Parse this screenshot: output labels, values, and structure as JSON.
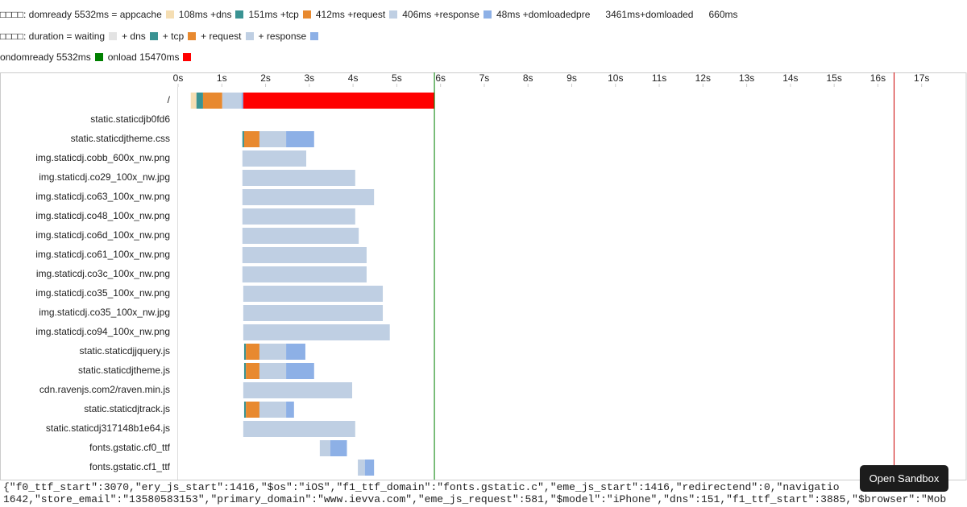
{
  "legend_lines": [
    [
      {
        "text": "□□□□: domready 5532ms = appcache",
        "color": "#f5deb3"
      },
      {
        "text": "108ms +dns",
        "color": "#3a9393"
      },
      {
        "text": "151ms +tcp",
        "color": "#e8892f"
      },
      {
        "text": "412ms +request",
        "color": "#bfcfe3"
      },
      {
        "text": "406ms +response",
        "color": "#8db0e6"
      },
      {
        "text": "48ms +domloadedpre"
      },
      {
        "text": "3461ms+domloaded"
      },
      {
        "text": "660ms"
      }
    ],
    [
      {
        "text": "□□□□: duration = waiting",
        "color": "#e3e3e3"
      },
      {
        "text": "+ dns",
        "color": "#3a9393"
      },
      {
        "text": "+ tcp",
        "color": "#e8892f"
      },
      {
        "text": "+ request",
        "color": "#bfcfe3"
      },
      {
        "text": "+ response",
        "color": "#8db0e6"
      }
    ],
    [
      {
        "text": "ondomready 5532ms",
        "color": "#008000"
      },
      {
        "text": "onload 15470ms",
        "color": "#ff0000"
      }
    ]
  ],
  "chart_data": {
    "type": "gantt",
    "xlim": [
      0,
      18
    ],
    "xticks": [
      {
        "value": 0,
        "label": "0s"
      },
      {
        "value": 1,
        "label": "1s"
      },
      {
        "value": 2,
        "label": "2s"
      },
      {
        "value": 3,
        "label": "3s"
      },
      {
        "value": 4,
        "label": "4s"
      },
      {
        "value": 5,
        "label": "5s"
      },
      {
        "value": 6,
        "label": "6s"
      },
      {
        "value": 7,
        "label": "7s"
      },
      {
        "value": 8,
        "label": "8s"
      },
      {
        "value": 9,
        "label": "9s"
      },
      {
        "value": 10,
        "label": "10s"
      },
      {
        "value": 11,
        "label": "11s"
      },
      {
        "value": 12,
        "label": "12s"
      },
      {
        "value": 13,
        "label": "13s"
      },
      {
        "value": 14,
        "label": "14s"
      },
      {
        "value": 15,
        "label": "15s"
      },
      {
        "value": 16,
        "label": "16s"
      },
      {
        "value": 17,
        "label": "17s"
      }
    ],
    "markers": [
      {
        "value": 5.86,
        "color": "#008000"
      },
      {
        "value": 16.37,
        "color": "#cc0000"
      }
    ],
    "rows": [
      {
        "name": "/",
        "segments": [
          {
            "start": 0.29,
            "end": 0.42,
            "color": "#f5deb3"
          },
          {
            "start": 0.42,
            "end": 0.57,
            "color": "#3a9393"
          },
          {
            "start": 0.57,
            "end": 1.01,
            "color": "#e8892f"
          },
          {
            "start": 1.01,
            "end": 1.45,
            "color": "#bfcfe3"
          },
          {
            "start": 1.45,
            "end": 1.49,
            "color": "#8db0e6"
          },
          {
            "start": 1.49,
            "end": 5.86,
            "color": "#ff0000"
          }
        ]
      },
      {
        "name": "static.staticdjb0fd6",
        "segments": []
      },
      {
        "name": "static.staticdjtheme.css",
        "segments": [
          {
            "start": 1.47,
            "end": 1.51,
            "color": "#3a9393"
          },
          {
            "start": 1.51,
            "end": 1.86,
            "color": "#e8892f"
          },
          {
            "start": 1.86,
            "end": 2.47,
            "color": "#bfcfe3"
          },
          {
            "start": 2.47,
            "end": 3.11,
            "color": "#8db0e6"
          }
        ]
      },
      {
        "name": "img.staticdj.cobb_600x_nw.png",
        "segments": [
          {
            "start": 1.47,
            "end": 2.93,
            "color": "#bfcfe3"
          }
        ]
      },
      {
        "name": "img.staticdj.co29_100x_nw.jpg",
        "segments": [
          {
            "start": 1.47,
            "end": 4.05,
            "color": "#bfcfe3"
          }
        ]
      },
      {
        "name": "img.staticdj.co63_100x_nw.png",
        "segments": [
          {
            "start": 1.47,
            "end": 4.48,
            "color": "#bfcfe3"
          }
        ]
      },
      {
        "name": "img.staticdj.co48_100x_nw.png",
        "segments": [
          {
            "start": 1.47,
            "end": 4.05,
            "color": "#bfcfe3"
          }
        ]
      },
      {
        "name": "img.staticdj.co6d_100x_nw.png",
        "segments": [
          {
            "start": 1.47,
            "end": 4.13,
            "color": "#bfcfe3"
          }
        ]
      },
      {
        "name": "img.staticdj.co61_100x_nw.png",
        "segments": [
          {
            "start": 1.47,
            "end": 4.31,
            "color": "#bfcfe3"
          }
        ]
      },
      {
        "name": "img.staticdj.co3c_100x_nw.png",
        "segments": [
          {
            "start": 1.47,
            "end": 4.31,
            "color": "#bfcfe3"
          }
        ]
      },
      {
        "name": "img.staticdj.co35_100x_nw.png",
        "segments": [
          {
            "start": 1.49,
            "end": 4.68,
            "color": "#bfcfe3"
          }
        ]
      },
      {
        "name": "img.staticdj.co35_100x_nw.jpg",
        "segments": [
          {
            "start": 1.49,
            "end": 4.68,
            "color": "#bfcfe3"
          }
        ]
      },
      {
        "name": "img.staticdj.co94_100x_nw.png",
        "segments": [
          {
            "start": 1.49,
            "end": 4.84,
            "color": "#bfcfe3"
          }
        ]
      },
      {
        "name": "static.staticdjjquery.js",
        "segments": [
          {
            "start": 1.51,
            "end": 1.55,
            "color": "#3a9393"
          },
          {
            "start": 1.55,
            "end": 1.86,
            "color": "#e8892f"
          },
          {
            "start": 1.86,
            "end": 2.47,
            "color": "#bfcfe3"
          },
          {
            "start": 2.47,
            "end": 2.91,
            "color": "#8db0e6"
          }
        ]
      },
      {
        "name": "static.staticdjtheme.js",
        "segments": [
          {
            "start": 1.51,
            "end": 1.55,
            "color": "#3a9393"
          },
          {
            "start": 1.55,
            "end": 1.86,
            "color": "#e8892f"
          },
          {
            "start": 1.86,
            "end": 2.47,
            "color": "#bfcfe3"
          },
          {
            "start": 2.47,
            "end": 3.11,
            "color": "#8db0e6"
          }
        ]
      },
      {
        "name": "cdn.ravenjs.com2/raven.min.js",
        "segments": [
          {
            "start": 1.49,
            "end": 3.98,
            "color": "#bfcfe3"
          }
        ]
      },
      {
        "name": "static.staticdjtrack.js",
        "segments": [
          {
            "start": 1.51,
            "end": 1.55,
            "color": "#3a9393"
          },
          {
            "start": 1.55,
            "end": 1.86,
            "color": "#e8892f"
          },
          {
            "start": 1.86,
            "end": 2.47,
            "color": "#bfcfe3"
          },
          {
            "start": 2.47,
            "end": 2.65,
            "color": "#8db0e6"
          }
        ]
      },
      {
        "name": "static.staticdj317148b1e64.js",
        "segments": [
          {
            "start": 1.49,
            "end": 4.05,
            "color": "#bfcfe3"
          }
        ]
      },
      {
        "name": "fonts.gstatic.cf0_ttf",
        "segments": [
          {
            "start": 3.24,
            "end": 3.48,
            "color": "#bfcfe3"
          },
          {
            "start": 3.48,
            "end": 3.86,
            "color": "#8db0e6"
          }
        ]
      },
      {
        "name": "fonts.gstatic.cf1_ttf",
        "segments": [
          {
            "start": 4.11,
            "end": 4.27,
            "color": "#bfcfe3"
          },
          {
            "start": 4.27,
            "end": 4.48,
            "color": "#8db0e6"
          }
        ]
      }
    ]
  },
  "footer_lines": [
    "{\"f0_ttf_start\":3070,\"ery_js_start\":1416,\"$os\":\"iOS\",\"f1_ttf_domain\":\"fonts.gstatic.c\",\"eme_js_start\":1416,\"redirectend\":0,\"navigatio",
    "1642,\"store_email\":\"13580583153\",\"primary_domain\":\"www.ievva.com\",\"eme_js_request\":581,\"$model\":\"iPhone\",\"dns\":151,\"f1_ttf_start\":3885,\"$browser\":\"Mob"
  ],
  "button": "Open Sandbox"
}
